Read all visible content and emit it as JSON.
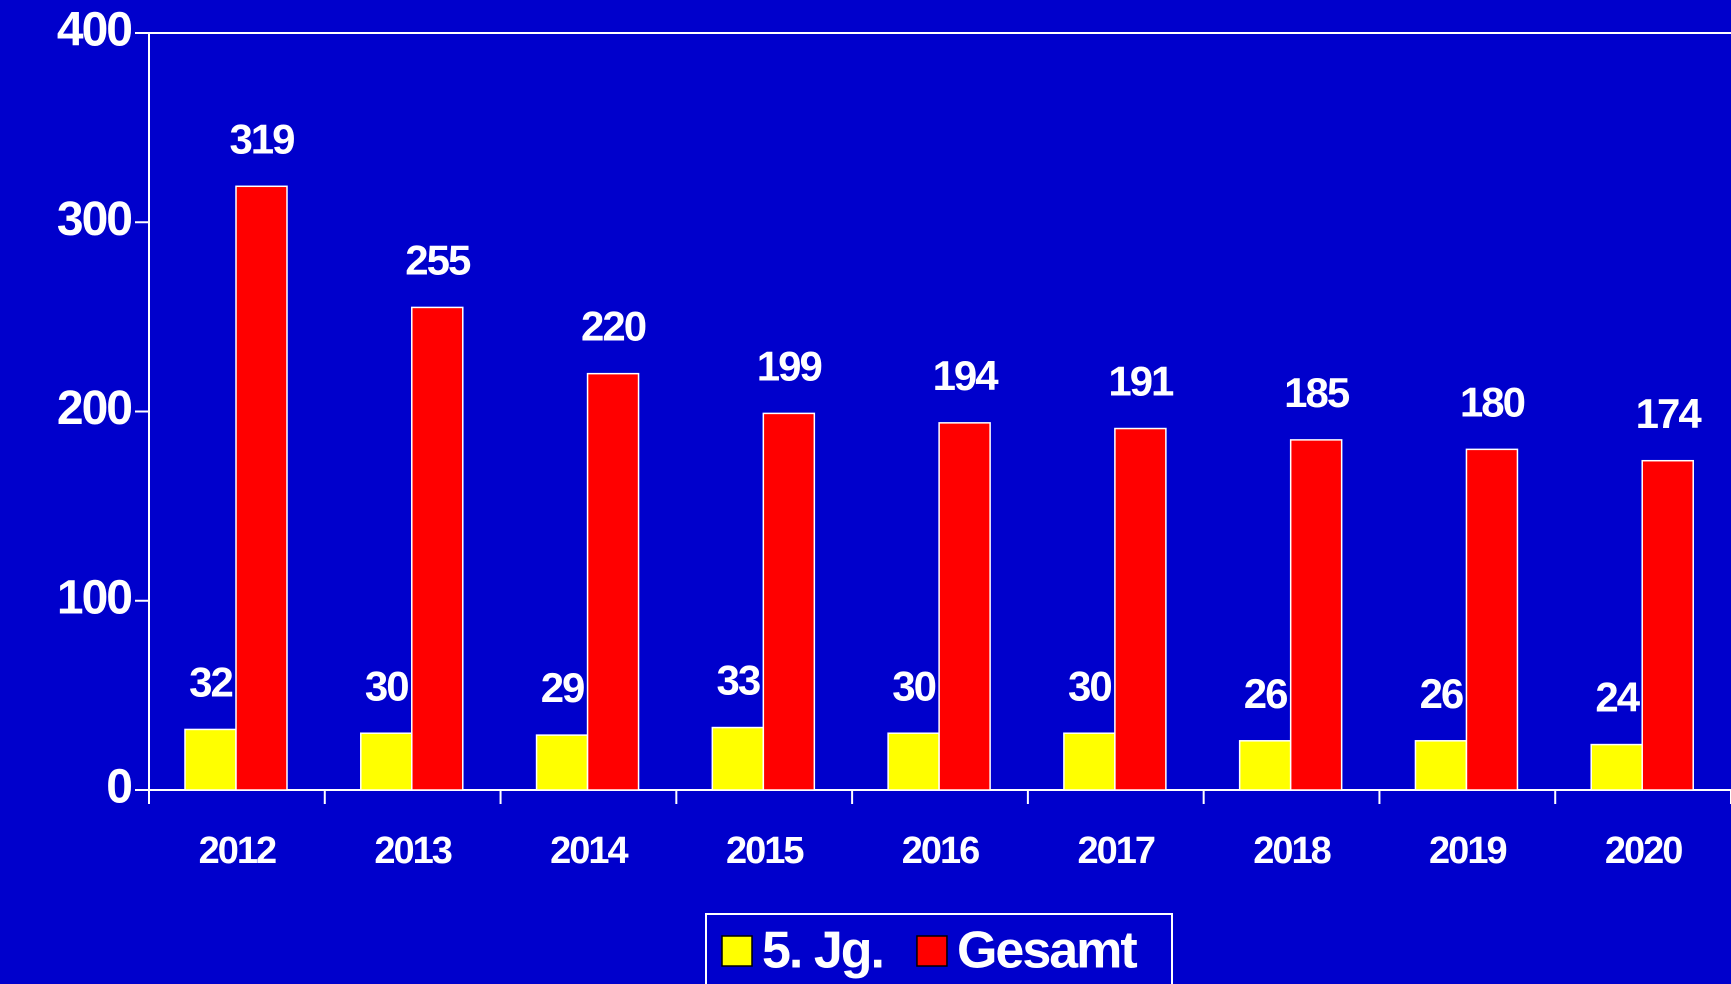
{
  "chart_data": {
    "type": "bar",
    "categories": [
      "2012",
      "2013",
      "2014",
      "2015",
      "2016",
      "2017",
      "2018",
      "2019",
      "2020"
    ],
    "series": [
      {
        "name": "5. Jg.",
        "color": "#ffff00",
        "values": [
          32,
          30,
          29,
          33,
          30,
          30,
          26,
          26,
          24
        ]
      },
      {
        "name": "Gesamt",
        "color": "#ff0000",
        "values": [
          319,
          255,
          220,
          199,
          194,
          191,
          185,
          180,
          174
        ]
      }
    ],
    "ylim": [
      0,
      400
    ],
    "yticks": [
      0,
      100,
      200,
      300,
      400
    ],
    "legend": "bottom"
  }
}
